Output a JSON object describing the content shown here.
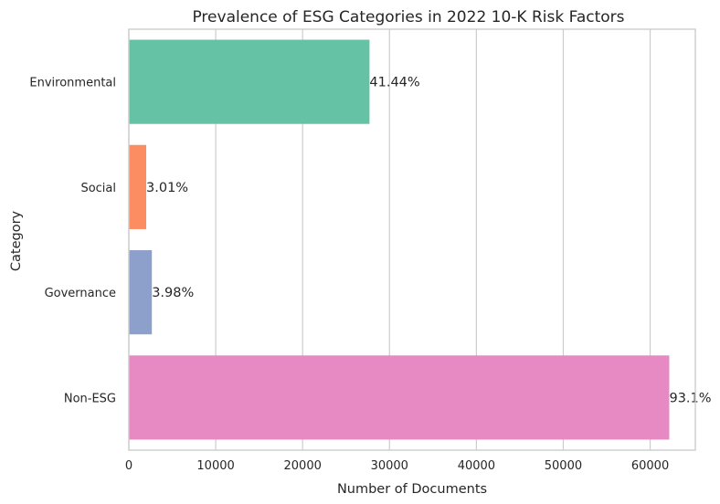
{
  "chart_data": {
    "type": "bar",
    "orientation": "horizontal",
    "title": "Prevalence of ESG Categories in 2022 10-K Risk Factors",
    "xlabel": "Number of Documents",
    "ylabel": "Category",
    "categories": [
      "Environmental",
      "Social",
      "Governance",
      "Non-ESG"
    ],
    "values": [
      27700,
      2000,
      2650,
      62200
    ],
    "data_labels": [
      "41.44%",
      "3.01%",
      "3.98%",
      "93.1%"
    ],
    "colors": [
      "#66c2a5",
      "#fc8d62",
      "#8da0cb",
      "#e78ac3"
    ],
    "xlim": [
      0,
      65200
    ],
    "xticks": [
      0,
      10000,
      20000,
      30000,
      40000,
      50000,
      60000
    ],
    "xtick_labels": [
      "0",
      "10000",
      "20000",
      "30000",
      "40000",
      "50000",
      "60000"
    ],
    "grid": "vertical",
    "legend": "none"
  }
}
